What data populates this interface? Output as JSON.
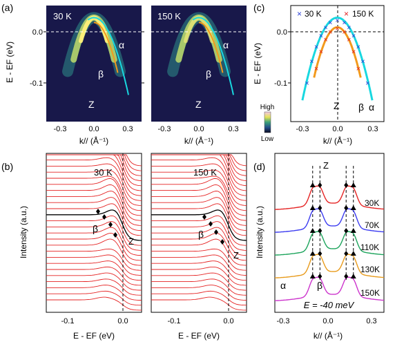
{
  "panels": {
    "a_label": "(a)",
    "b_label": "(b)",
    "c_label": "(c)",
    "d_label": "(d)"
  },
  "panel_a": {
    "left_temp": "30 K",
    "right_temp": "150 K",
    "ylabel": "E - EF (eV)",
    "xlabel": "k// (Å⁻¹)",
    "yticks": [
      "0.0",
      "-0.1"
    ],
    "xticks": [
      "-0.3",
      "0.0",
      "0.3"
    ],
    "band_alpha": "α",
    "band_beta": "β",
    "point_z": "Z",
    "colorbar_high": "High",
    "colorbar_low": "Low"
  },
  "panel_b": {
    "left_temp": "30 K",
    "right_temp": "150 K",
    "ylabel": "Intensity (a.u.)",
    "xlabel": "E - EF (eV)",
    "xticks": [
      "-0.1",
      "0.0"
    ],
    "beta": "β",
    "z": "Z"
  },
  "panel_c": {
    "ylabel": "E - EF (eV)",
    "xlabel": "k// (Å⁻¹)",
    "yticks": [
      "0.0",
      "-0.1"
    ],
    "xticks": [
      "-0.3",
      "0.0",
      "0.3"
    ],
    "legend": [
      {
        "label": "30 K",
        "marker": "×",
        "color": "#2a3fd6"
      },
      {
        "label": "150 K",
        "marker": "×",
        "color": "#e02020"
      }
    ],
    "z": "Z",
    "beta": "β",
    "alpha": "α",
    "fit_colors": {
      "alpha": "#18d8e0",
      "beta": "#f29a1c"
    }
  },
  "panel_d": {
    "ylabel": "Intensity (a.u.)",
    "xlabel": "k// (Å⁻¹)",
    "xticks": [
      "-0.3",
      "0.0",
      "0.3"
    ],
    "curves": [
      {
        "label": "30K",
        "color": "#e52222"
      },
      {
        "label": "70K",
        "color": "#3a3af0"
      },
      {
        "label": "110K",
        "color": "#1aa35a"
      },
      {
        "label": "130K",
        "color": "#e89a1a"
      },
      {
        "label": "150K",
        "color": "#cc33cc"
      }
    ],
    "z": "Z",
    "alpha": "α",
    "beta": "β",
    "energy_note": "E = -40 meV"
  },
  "chart_data": [
    {
      "type": "heatmap",
      "title": "",
      "panels": [
        "30 K",
        "150 K"
      ],
      "xlabel": "k// (Å⁻¹)",
      "ylabel": "E - EF (eV)",
      "xlim": [
        -0.4,
        0.4
      ],
      "ylim": [
        -0.21,
        0.03
      ],
      "bands": [
        {
          "name": "α",
          "k_top": 0.0,
          "e_top": 0.005,
          "curvature": -1.9
        },
        {
          "name": "β",
          "k_top": 0.0,
          "e_top": -0.005,
          "curvature": -2.6
        }
      ]
    },
    {
      "type": "line",
      "title": "",
      "xlabel": "E - EF (eV)",
      "ylabel": "Intensity (a.u.)",
      "xlim": [
        -0.15,
        0.03
      ],
      "panels": [
        "30 K",
        "150 K"
      ],
      "curve_count": 30
    },
    {
      "type": "scatter",
      "title": "",
      "xlabel": "k// (Å⁻¹)",
      "ylabel": "E - EF (eV)",
      "xlim": [
        -0.4,
        0.4
      ],
      "ylim": [
        -0.21,
        0.03
      ],
      "series": [
        {
          "name": "30 K",
          "values": [
            [
              -0.26,
              -0.13
            ],
            [
              -0.22,
              -0.085
            ],
            [
              -0.18,
              -0.055
            ],
            [
              -0.14,
              -0.032
            ],
            [
              -0.1,
              -0.015
            ],
            [
              -0.06,
              -0.005
            ],
            [
              0.0,
              0.0
            ],
            [
              0.06,
              -0.005
            ],
            [
              0.1,
              -0.015
            ],
            [
              0.14,
              -0.032
            ],
            [
              0.18,
              -0.055
            ],
            [
              0.22,
              -0.085
            ],
            [
              0.26,
              -0.13
            ]
          ]
        },
        {
          "name": "150 K",
          "values": [
            [
              -0.18,
              -0.1
            ],
            [
              -0.14,
              -0.065
            ],
            [
              -0.1,
              -0.04
            ],
            [
              -0.06,
              -0.024
            ],
            [
              0.0,
              -0.017
            ],
            [
              0.06,
              -0.024
            ],
            [
              0.1,
              -0.04
            ],
            [
              0.14,
              -0.065
            ],
            [
              0.18,
              -0.1
            ]
          ]
        }
      ]
    },
    {
      "type": "line",
      "title": "",
      "xlabel": "k// (Å⁻¹)",
      "ylabel": "Intensity (a.u.)",
      "xlim": [
        -0.4,
        0.35
      ],
      "series": [
        {
          "name": "30K",
          "peaks_k": [
            -0.14,
            -0.09,
            0.09,
            0.14
          ]
        },
        {
          "name": "70K",
          "peaks_k": [
            -0.14,
            -0.09,
            0.09,
            0.14
          ]
        },
        {
          "name": "110K",
          "peaks_k": [
            -0.14,
            -0.09,
            0.09,
            0.14
          ]
        },
        {
          "name": "130K",
          "peaks_k": [
            -0.14,
            -0.09,
            0.09,
            0.14
          ]
        },
        {
          "name": "150K",
          "peaks_k": [
            -0.14,
            -0.09,
            0.09,
            0.14
          ]
        }
      ]
    }
  ]
}
